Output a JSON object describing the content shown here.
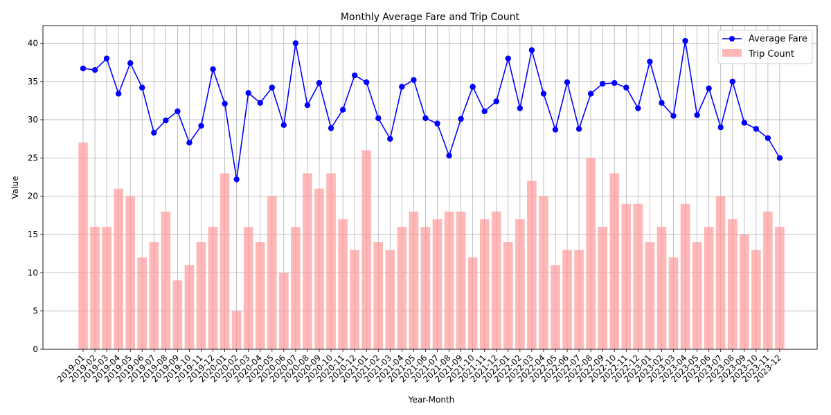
{
  "chart_data": {
    "type": "bar",
    "title": "Monthly Average Fare and Trip Count",
    "xlabel": "Year-Month",
    "ylabel": "Value",
    "ylim": [
      0,
      42.3
    ],
    "yticks": [
      0,
      5,
      10,
      15,
      20,
      25,
      30,
      35,
      40
    ],
    "grid": true,
    "legend_position": "top-right",
    "categories": [
      "2019-01",
      "2019-02",
      "2019-03",
      "2019-04",
      "2019-05",
      "2019-06",
      "2019-07",
      "2019-08",
      "2019-09",
      "2019-10",
      "2019-11",
      "2019-12",
      "2020-01",
      "2020-02",
      "2020-03",
      "2020-04",
      "2020-05",
      "2020-06",
      "2020-07",
      "2020-08",
      "2020-09",
      "2020-10",
      "2020-11",
      "2020-12",
      "2021-01",
      "2021-02",
      "2021-03",
      "2021-04",
      "2021-05",
      "2021-06",
      "2021-07",
      "2021-08",
      "2021-09",
      "2021-10",
      "2021-11",
      "2021-12",
      "2022-01",
      "2022-02",
      "2022-03",
      "2022-04",
      "2022-05",
      "2022-06",
      "2022-07",
      "2022-08",
      "2022-09",
      "2022-10",
      "2022-11",
      "2022-12",
      "2023-01",
      "2023-02",
      "2023-03",
      "2023-04",
      "2023-05",
      "2023-06",
      "2023-07",
      "2023-08",
      "2023-09",
      "2023-10",
      "2023-11",
      "2023-12"
    ],
    "series": [
      {
        "name": "Average Fare",
        "kind": "line",
        "color": "#0000ff",
        "marker": "circle",
        "values": [
          36.7,
          36.5,
          38.0,
          33.4,
          37.4,
          34.2,
          28.3,
          29.9,
          31.1,
          27.0,
          29.2,
          36.6,
          32.1,
          22.2,
          33.5,
          32.2,
          34.2,
          29.3,
          40.0,
          31.9,
          34.8,
          28.9,
          31.3,
          35.8,
          34.9,
          30.2,
          27.5,
          34.3,
          35.2,
          30.2,
          29.5,
          25.3,
          30.1,
          34.3,
          31.1,
          32.4,
          38.0,
          31.5,
          39.1,
          33.4,
          28.7,
          34.9,
          28.8,
          33.4,
          34.7,
          34.8,
          34.2,
          31.5,
          37.6,
          32.2,
          30.5,
          40.3,
          30.6,
          34.1,
          29.0,
          35.0,
          29.6,
          28.8,
          27.6,
          25.0
        ]
      },
      {
        "name": "Trip Count",
        "kind": "bar",
        "color": "#ff9999",
        "values": [
          27,
          16,
          16,
          21,
          20,
          12,
          14,
          18,
          9,
          11,
          14,
          16,
          23,
          5,
          16,
          14,
          20,
          10,
          16,
          23,
          21,
          23,
          17,
          13,
          26,
          14,
          13,
          16,
          18,
          16,
          17,
          18,
          18,
          12,
          17,
          18,
          14,
          17,
          22,
          20,
          11,
          13,
          13,
          25,
          16,
          23,
          19,
          19,
          14,
          16,
          12,
          19,
          14,
          16,
          20,
          17,
          15,
          13,
          18,
          16
        ]
      }
    ]
  }
}
